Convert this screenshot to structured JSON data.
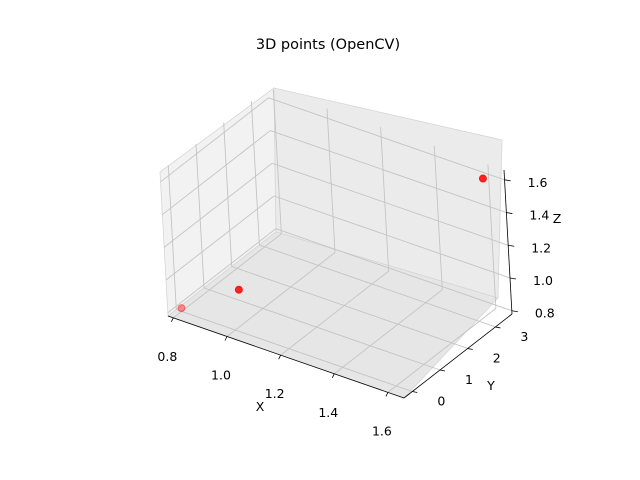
{
  "chart_data": {
    "type": "scatter",
    "title": "3D points (OpenCV)",
    "xlabel": "X",
    "ylabel": "Y",
    "zlabel": "Z",
    "xlim": [
      0.78,
      1.66
    ],
    "ylim": [
      -0.3,
      3.6
    ],
    "zlim": [
      0.78,
      1.66
    ],
    "x_ticks": [
      "0.8",
      "1.0",
      "1.2",
      "1.4",
      "1.6"
    ],
    "y_ticks": [
      "0",
      "1",
      "2",
      "3"
    ],
    "z_ticks": [
      "0.8",
      "1.0",
      "1.2",
      "1.4",
      "1.6"
    ],
    "grid": true,
    "points": [
      {
        "x": 0.8,
        "y": 0.0,
        "z": 0.8
      },
      {
        "x": 1.0,
        "y": 0.2,
        "z": 1.0
      },
      {
        "x": 1.6,
        "y": 3.4,
        "z": 1.6
      }
    ],
    "point_color": "#ff0000"
  }
}
